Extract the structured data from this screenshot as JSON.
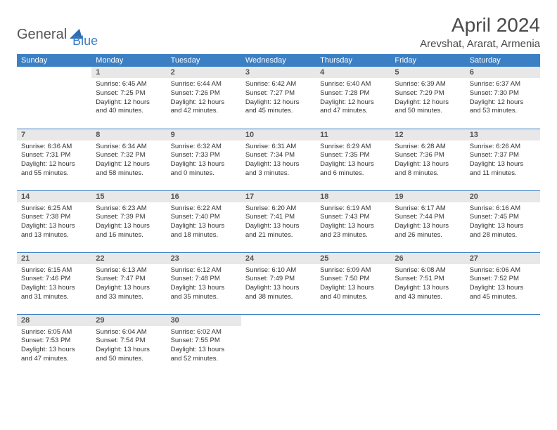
{
  "logo": {
    "part1": "General",
    "part2": "Blue"
  },
  "title": "April 2024",
  "location": "Arevshat, Ararat, Armenia",
  "colors": {
    "header_bg": "#3b7fc4",
    "header_fg": "#ffffff",
    "daynum_bg": "#e8e8e8",
    "border": "#3b7fc4",
    "text": "#333333",
    "logo_gray": "#555555",
    "logo_blue": "#3b7fc4",
    "page_bg": "#ffffff"
  },
  "day_headers": [
    "Sunday",
    "Monday",
    "Tuesday",
    "Wednesday",
    "Thursday",
    "Friday",
    "Saturday"
  ],
  "weeks": [
    [
      null,
      {
        "n": "1",
        "sr": "Sunrise: 6:45 AM",
        "ss": "Sunset: 7:25 PM",
        "d1": "Daylight: 12 hours",
        "d2": "and 40 minutes."
      },
      {
        "n": "2",
        "sr": "Sunrise: 6:44 AM",
        "ss": "Sunset: 7:26 PM",
        "d1": "Daylight: 12 hours",
        "d2": "and 42 minutes."
      },
      {
        "n": "3",
        "sr": "Sunrise: 6:42 AM",
        "ss": "Sunset: 7:27 PM",
        "d1": "Daylight: 12 hours",
        "d2": "and 45 minutes."
      },
      {
        "n": "4",
        "sr": "Sunrise: 6:40 AM",
        "ss": "Sunset: 7:28 PM",
        "d1": "Daylight: 12 hours",
        "d2": "and 47 minutes."
      },
      {
        "n": "5",
        "sr": "Sunrise: 6:39 AM",
        "ss": "Sunset: 7:29 PM",
        "d1": "Daylight: 12 hours",
        "d2": "and 50 minutes."
      },
      {
        "n": "6",
        "sr": "Sunrise: 6:37 AM",
        "ss": "Sunset: 7:30 PM",
        "d1": "Daylight: 12 hours",
        "d2": "and 53 minutes."
      }
    ],
    [
      {
        "n": "7",
        "sr": "Sunrise: 6:36 AM",
        "ss": "Sunset: 7:31 PM",
        "d1": "Daylight: 12 hours",
        "d2": "and 55 minutes."
      },
      {
        "n": "8",
        "sr": "Sunrise: 6:34 AM",
        "ss": "Sunset: 7:32 PM",
        "d1": "Daylight: 12 hours",
        "d2": "and 58 minutes."
      },
      {
        "n": "9",
        "sr": "Sunrise: 6:32 AM",
        "ss": "Sunset: 7:33 PM",
        "d1": "Daylight: 13 hours",
        "d2": "and 0 minutes."
      },
      {
        "n": "10",
        "sr": "Sunrise: 6:31 AM",
        "ss": "Sunset: 7:34 PM",
        "d1": "Daylight: 13 hours",
        "d2": "and 3 minutes."
      },
      {
        "n": "11",
        "sr": "Sunrise: 6:29 AM",
        "ss": "Sunset: 7:35 PM",
        "d1": "Daylight: 13 hours",
        "d2": "and 6 minutes."
      },
      {
        "n": "12",
        "sr": "Sunrise: 6:28 AM",
        "ss": "Sunset: 7:36 PM",
        "d1": "Daylight: 13 hours",
        "d2": "and 8 minutes."
      },
      {
        "n": "13",
        "sr": "Sunrise: 6:26 AM",
        "ss": "Sunset: 7:37 PM",
        "d1": "Daylight: 13 hours",
        "d2": "and 11 minutes."
      }
    ],
    [
      {
        "n": "14",
        "sr": "Sunrise: 6:25 AM",
        "ss": "Sunset: 7:38 PM",
        "d1": "Daylight: 13 hours",
        "d2": "and 13 minutes."
      },
      {
        "n": "15",
        "sr": "Sunrise: 6:23 AM",
        "ss": "Sunset: 7:39 PM",
        "d1": "Daylight: 13 hours",
        "d2": "and 16 minutes."
      },
      {
        "n": "16",
        "sr": "Sunrise: 6:22 AM",
        "ss": "Sunset: 7:40 PM",
        "d1": "Daylight: 13 hours",
        "d2": "and 18 minutes."
      },
      {
        "n": "17",
        "sr": "Sunrise: 6:20 AM",
        "ss": "Sunset: 7:41 PM",
        "d1": "Daylight: 13 hours",
        "d2": "and 21 minutes."
      },
      {
        "n": "18",
        "sr": "Sunrise: 6:19 AM",
        "ss": "Sunset: 7:43 PM",
        "d1": "Daylight: 13 hours",
        "d2": "and 23 minutes."
      },
      {
        "n": "19",
        "sr": "Sunrise: 6:17 AM",
        "ss": "Sunset: 7:44 PM",
        "d1": "Daylight: 13 hours",
        "d2": "and 26 minutes."
      },
      {
        "n": "20",
        "sr": "Sunrise: 6:16 AM",
        "ss": "Sunset: 7:45 PM",
        "d1": "Daylight: 13 hours",
        "d2": "and 28 minutes."
      }
    ],
    [
      {
        "n": "21",
        "sr": "Sunrise: 6:15 AM",
        "ss": "Sunset: 7:46 PM",
        "d1": "Daylight: 13 hours",
        "d2": "and 31 minutes."
      },
      {
        "n": "22",
        "sr": "Sunrise: 6:13 AM",
        "ss": "Sunset: 7:47 PM",
        "d1": "Daylight: 13 hours",
        "d2": "and 33 minutes."
      },
      {
        "n": "23",
        "sr": "Sunrise: 6:12 AM",
        "ss": "Sunset: 7:48 PM",
        "d1": "Daylight: 13 hours",
        "d2": "and 35 minutes."
      },
      {
        "n": "24",
        "sr": "Sunrise: 6:10 AM",
        "ss": "Sunset: 7:49 PM",
        "d1": "Daylight: 13 hours",
        "d2": "and 38 minutes."
      },
      {
        "n": "25",
        "sr": "Sunrise: 6:09 AM",
        "ss": "Sunset: 7:50 PM",
        "d1": "Daylight: 13 hours",
        "d2": "and 40 minutes."
      },
      {
        "n": "26",
        "sr": "Sunrise: 6:08 AM",
        "ss": "Sunset: 7:51 PM",
        "d1": "Daylight: 13 hours",
        "d2": "and 43 minutes."
      },
      {
        "n": "27",
        "sr": "Sunrise: 6:06 AM",
        "ss": "Sunset: 7:52 PM",
        "d1": "Daylight: 13 hours",
        "d2": "and 45 minutes."
      }
    ],
    [
      {
        "n": "28",
        "sr": "Sunrise: 6:05 AM",
        "ss": "Sunset: 7:53 PM",
        "d1": "Daylight: 13 hours",
        "d2": "and 47 minutes."
      },
      {
        "n": "29",
        "sr": "Sunrise: 6:04 AM",
        "ss": "Sunset: 7:54 PM",
        "d1": "Daylight: 13 hours",
        "d2": "and 50 minutes."
      },
      {
        "n": "30",
        "sr": "Sunrise: 6:02 AM",
        "ss": "Sunset: 7:55 PM",
        "d1": "Daylight: 13 hours",
        "d2": "and 52 minutes."
      },
      null,
      null,
      null,
      null
    ]
  ]
}
